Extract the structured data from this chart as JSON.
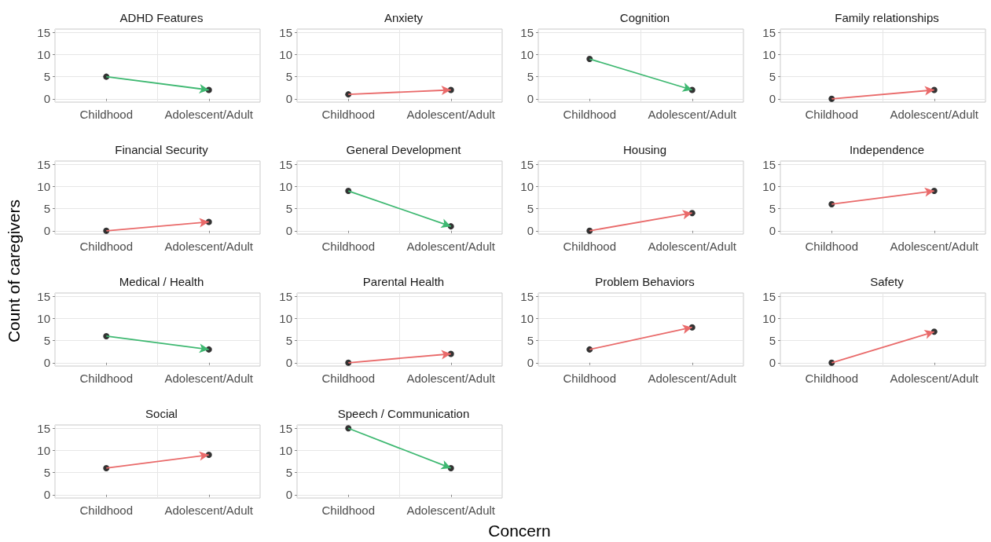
{
  "chart_data": [
    {
      "type": "scatter",
      "title": "ADHD Features",
      "ylabel": "Count of caregivers",
      "categories": [
        "Childhood",
        "Adolescent/Adult"
      ],
      "ylim": [
        -0.75,
        15.75
      ],
      "yticks": [
        0,
        5,
        10,
        15
      ],
      "grid": true,
      "marker": "circle",
      "series": [
        {
          "color": "#000000",
          "values": [
            5,
            2
          ]
        }
      ]
    },
    {
      "type": "scatter",
      "title": "Anxiety",
      "categories": [
        "Childhood",
        "Adolescent/Adult"
      ],
      "ylim": [
        -0.75,
        15.75
      ],
      "yticks": [
        0,
        5,
        10,
        15
      ],
      "grid": true,
      "marker": "circle",
      "series": [
        {
          "color": "#000000",
          "values": [
            1,
            2
          ]
        }
      ]
    },
    {
      "type": "scatter",
      "title": "Cognition",
      "categories": [
        "Childhood",
        "Adolescent/Adult"
      ],
      "ylim": [
        -0.75,
        15.75
      ],
      "yticks": [
        0,
        5,
        10,
        15
      ],
      "grid": true,
      "marker": "circle",
      "series": [
        {
          "color": "#000000",
          "values": [
            9,
            2
          ]
        }
      ]
    },
    {
      "type": "scatter",
      "title": "Family relationships",
      "categories": [
        "Childhood",
        "Adolescent/Adult"
      ],
      "ylim": [
        -0.75,
        15.75
      ],
      "yticks": [
        0,
        5,
        10,
        15
      ],
      "grid": true,
      "marker": "circle",
      "series": [
        {
          "color": "#000000",
          "values": [
            0,
            2
          ]
        }
      ]
    },
    {
      "type": "scatter",
      "title": "Financial Security",
      "categories": [
        "Childhood",
        "Adolescent/Adult"
      ],
      "ylim": [
        -0.75,
        15.75
      ],
      "yticks": [
        0,
        5,
        10,
        15
      ],
      "grid": true,
      "marker": "circle",
      "series": [
        {
          "color": "#000000",
          "values": [
            0,
            2
          ]
        }
      ]
    },
    {
      "type": "scatter",
      "title": "General Development",
      "categories": [
        "Childhood",
        "Adolescent/Adult"
      ],
      "ylim": [
        -0.75,
        15.75
      ],
      "yticks": [
        0,
        5,
        10,
        15
      ],
      "grid": true,
      "marker": "circle",
      "series": [
        {
          "color": "#000000",
          "values": [
            9,
            1
          ]
        }
      ]
    },
    {
      "type": "scatter",
      "title": "Housing",
      "categories": [
        "Childhood",
        "Adolescent/Adult"
      ],
      "ylim": [
        -0.75,
        15.75
      ],
      "yticks": [
        0,
        5,
        10,
        15
      ],
      "grid": true,
      "marker": "circle",
      "series": [
        {
          "color": "#000000",
          "values": [
            0,
            4
          ]
        }
      ]
    },
    {
      "type": "scatter",
      "title": "Independence",
      "categories": [
        "Childhood",
        "Adolescent/Adult"
      ],
      "ylim": [
        -0.75,
        15.75
      ],
      "yticks": [
        0,
        5,
        10,
        15
      ],
      "grid": true,
      "marker": "circle",
      "series": [
        {
          "color": "#000000",
          "values": [
            6,
            9
          ]
        }
      ]
    },
    {
      "type": "scatter",
      "title": "Medical / Health",
      "categories": [
        "Childhood",
        "Adolescent/Adult"
      ],
      "ylim": [
        -0.75,
        15.75
      ],
      "yticks": [
        0,
        5,
        10,
        15
      ],
      "grid": true,
      "marker": "circle",
      "series": [
        {
          "color": "#000000",
          "values": [
            6,
            3
          ]
        }
      ]
    },
    {
      "type": "scatter",
      "title": "Parental Health",
      "categories": [
        "Childhood",
        "Adolescent/Adult"
      ],
      "ylim": [
        -0.75,
        15.75
      ],
      "yticks": [
        0,
        5,
        10,
        15
      ],
      "grid": true,
      "marker": "circle",
      "series": [
        {
          "color": "#000000",
          "values": [
            0,
            2
          ]
        }
      ]
    },
    {
      "type": "scatter",
      "title": "Problem Behaviors",
      "categories": [
        "Childhood",
        "Adolescent/Adult"
      ],
      "ylim": [
        -0.75,
        15.75
      ],
      "yticks": [
        0,
        5,
        10,
        15
      ],
      "grid": true,
      "marker": "circle",
      "series": [
        {
          "color": "#000000",
          "values": [
            3,
            8
          ]
        }
      ]
    },
    {
      "type": "scatter",
      "title": "Safety",
      "categories": [
        "Childhood",
        "Adolescent/Adult"
      ],
      "ylim": [
        -0.75,
        15.75
      ],
      "yticks": [
        0,
        5,
        10,
        15
      ],
      "grid": true,
      "marker": "circle",
      "series": [
        {
          "color": "#000000",
          "values": [
            0,
            7
          ]
        }
      ]
    },
    {
      "type": "scatter",
      "title": "Social",
      "categories": [
        "Childhood",
        "Adolescent/Adult"
      ],
      "ylim": [
        -0.75,
        15.75
      ],
      "yticks": [
        0,
        5,
        10,
        15
      ],
      "grid": true,
      "marker": "circle",
      "series": [
        {
          "color": "#000000",
          "values": [
            6,
            9
          ]
        }
      ]
    },
    {
      "type": "scatter",
      "title": "Speech / Communication",
      "xlabel": "Concern",
      "categories": [
        "Childhood",
        "Adolescent/Adult"
      ],
      "ylim": [
        -0.75,
        15.75
      ],
      "yticks": [
        0,
        5,
        10,
        15
      ],
      "grid": true,
      "marker": "circle",
      "series": [
        {
          "color": "#000000",
          "values": [
            15,
            6
          ]
        }
      ]
    }
  ]
}
